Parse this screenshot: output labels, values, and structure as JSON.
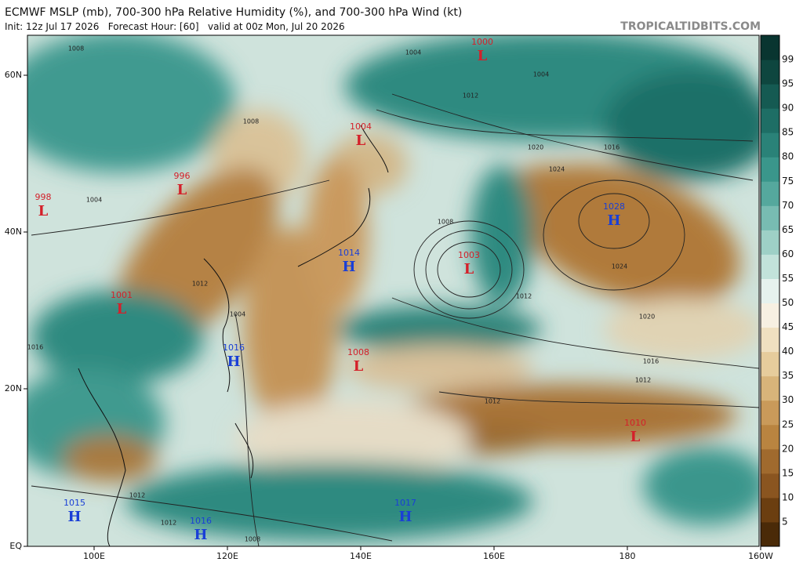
{
  "header": {
    "title": "ECMWF MSLP (mb), 700-300 hPa Relative Humidity (%), and 700-300 hPa Wind (kt)",
    "subtitle": "Init: 12z Jul 17 2026   Forecast Hour: [60]   valid at 00z Mon, Jul 20 2026",
    "source": "TROPICALTIDBITS.COM"
  },
  "axes": {
    "lat_labels": [
      "60N",
      "40N",
      "20N",
      "EQ"
    ],
    "lon_labels": [
      "100E",
      "120E",
      "140E",
      "160E",
      "180",
      "160W"
    ]
  },
  "colorbar": {
    "ticks": [
      5,
      10,
      15,
      20,
      25,
      30,
      35,
      40,
      45,
      50,
      55,
      60,
      65,
      70,
      75,
      80,
      85,
      90,
      95,
      99
    ]
  },
  "centers": [
    {
      "letter": "L",
      "pressure": "998"
    },
    {
      "letter": "L",
      "pressure": "996"
    },
    {
      "letter": "L",
      "pressure": "1004"
    },
    {
      "letter": "L",
      "pressure": "1000"
    },
    {
      "letter": "H",
      "pressure": "1028"
    },
    {
      "letter": "H",
      "pressure": "1014"
    },
    {
      "letter": "L",
      "pressure": "1003"
    },
    {
      "letter": "L",
      "pressure": "1001"
    },
    {
      "letter": "H",
      "pressure": "1016"
    },
    {
      "letter": "L",
      "pressure": "1008"
    },
    {
      "letter": "L",
      "pressure": "1010"
    },
    {
      "letter": "H",
      "pressure": "1015"
    },
    {
      "letter": "H",
      "pressure": "1016"
    },
    {
      "letter": "H",
      "pressure": "1017"
    }
  ],
  "isobar_labels": [
    "1008",
    "1004",
    "1004",
    "1012",
    "1008",
    "1020",
    "1024",
    "1016",
    "1024",
    "1020",
    "1016",
    "1012",
    "1012",
    "1008",
    "1004",
    "1012",
    "1012",
    "1012",
    "1008",
    "1016",
    "1004",
    "1012"
  ]
}
